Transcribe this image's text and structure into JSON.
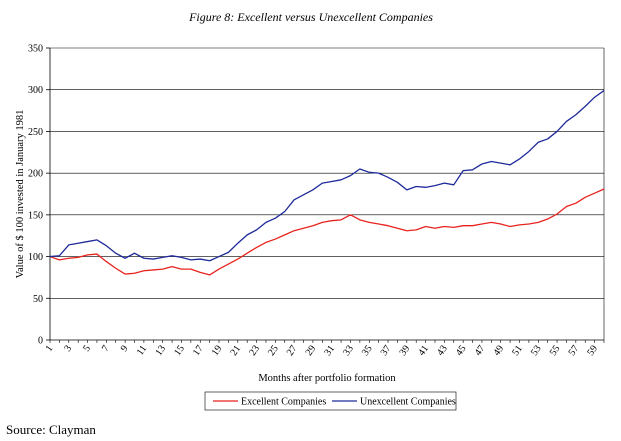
{
  "chart_data": {
    "type": "line",
    "title": "Figure 8: Excellent versus Unexcellent Companies",
    "xlabel": "Months after portfolio formation",
    "ylabel": "Value of $ 100 invested in January 1981",
    "ylim": [
      0,
      350
    ],
    "yticks": [
      0,
      50,
      100,
      150,
      200,
      250,
      300,
      350
    ],
    "xticks": [
      1,
      3,
      5,
      7,
      9,
      11,
      13,
      15,
      17,
      19,
      21,
      23,
      25,
      27,
      29,
      31,
      33,
      35,
      37,
      39,
      41,
      43,
      45,
      47,
      49,
      51,
      53,
      55,
      57,
      59
    ],
    "x": [
      1,
      2,
      3,
      4,
      5,
      6,
      7,
      8,
      9,
      10,
      11,
      12,
      13,
      14,
      15,
      16,
      17,
      18,
      19,
      20,
      21,
      22,
      23,
      24,
      25,
      26,
      27,
      28,
      29,
      30,
      31,
      32,
      33,
      34,
      35,
      36,
      37,
      38,
      39,
      40,
      41,
      42,
      43,
      44,
      45,
      46,
      47,
      48,
      49,
      50,
      51,
      52,
      53,
      54,
      55,
      56,
      57,
      58,
      59,
      60
    ],
    "series": [
      {
        "name": "Excellent Companies",
        "color": "#e8231d",
        "values": [
          100,
          96,
          98,
          99,
          102,
          103,
          94,
          86,
          79,
          80,
          83,
          84,
          85,
          88,
          85,
          85,
          81,
          78,
          85,
          91,
          97,
          104,
          111,
          117,
          121,
          126,
          131,
          134,
          137,
          141,
          143,
          144,
          150,
          144,
          141,
          139,
          137,
          134,
          131,
          132,
          136,
          134,
          136,
          135,
          137,
          137,
          139,
          141,
          139,
          136,
          138,
          139,
          141,
          145,
          151,
          160,
          164,
          171,
          176,
          181
        ]
      },
      {
        "name": "Unexcellent Companies",
        "color": "#1e2a9a",
        "values": [
          100,
          101,
          114,
          116,
          118,
          120,
          113,
          104,
          98,
          104,
          98,
          97,
          99,
          101,
          99,
          96,
          97,
          95,
          100,
          105,
          116,
          126,
          132,
          141,
          146,
          154,
          168,
          174,
          180,
          188,
          190,
          192,
          197,
          205,
          201,
          200,
          195,
          189,
          180,
          184,
          183,
          185,
          188,
          186,
          203,
          204,
          211,
          214,
          212,
          210,
          217,
          226,
          237,
          241,
          250,
          262,
          270,
          280,
          291,
          299
        ]
      }
    ],
    "legend": [
      "Excellent Companies",
      "Unexcellent Companies"
    ],
    "legend_position": "bottom-center",
    "grid": "horizontal"
  },
  "source_text": "Source: Clayman"
}
